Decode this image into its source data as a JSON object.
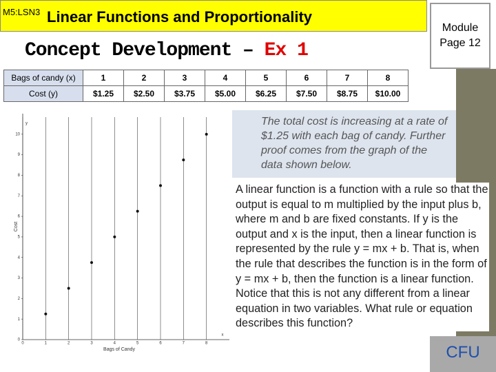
{
  "header": {
    "lesson": "M5:LSN3",
    "title": "Linear Functions and Proportionality",
    "subtitle": "Concept Development – ",
    "subtitle_highlight": "Ex 1",
    "module": "Module Page 12"
  },
  "table": {
    "rows": [
      [
        "Bags of candy (x)",
        "1",
        "2",
        "3",
        "4",
        "5",
        "6",
        "7",
        "8"
      ],
      [
        "Cost (y)",
        "$1.25",
        "$2.50",
        "$3.75",
        "$5.00",
        "$6.25",
        "$7.50",
        "$8.75",
        "$10.00"
      ]
    ]
  },
  "graph": {
    "x": [
      1,
      2,
      3,
      4,
      5,
      6,
      7,
      8
    ],
    "y": [
      1.25,
      2.5,
      3.75,
      5,
      6.25,
      7.5,
      8.75,
      10
    ],
    "xlim": [
      0,
      9
    ],
    "ylim": [
      0,
      11
    ],
    "xticks": [
      0,
      1,
      2,
      3,
      4,
      5,
      6,
      7,
      8
    ],
    "yticks": [
      0,
      1,
      2,
      3,
      4,
      5,
      6,
      7,
      8,
      9,
      10
    ],
    "x_label": "Bags of Candy",
    "y_label": "Cost",
    "x_axis_name": "x",
    "y_axis_name": "y"
  },
  "note": "The total cost is increasing at a rate of $1.25 with each bag of candy. Further proof comes from the graph of the data shown below.",
  "paragraph": "A linear function is a function with a rule so that the output is equal to m multiplied by the input plus b, where m and b are fixed constants. If y is the output and x is the input, then a linear function is represented by the rule y = mx + b. That is, when the rule that describes the function is in the form of y = mx + b, then the function is a linear function. Notice that this is not any different from a linear equation in two variables. What rule or equation describes this function?",
  "button": "CFU"
}
